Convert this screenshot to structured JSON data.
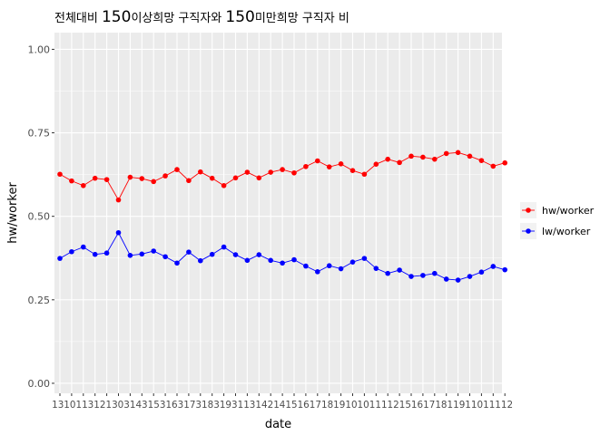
{
  "chart_data": {
    "type": "line",
    "title_parts": [
      {
        "text": "전체대비 ",
        "big": false
      },
      {
        "text": "150",
        "big": true
      },
      {
        "text": "이상희망 구직자와 ",
        "big": false
      },
      {
        "text": "150",
        "big": true
      },
      {
        "text": "미만희망 구직자 비",
        "big": false
      }
    ],
    "xlabel": "date",
    "ylabel": "hw/worker",
    "ylim": [
      -0.03,
      1.05
    ],
    "y_ticks": [
      {
        "value": 0.0,
        "label": "0.00"
      },
      {
        "value": 0.25,
        "label": "0.25"
      },
      {
        "value": 0.5,
        "label": "0.50"
      },
      {
        "value": 0.75,
        "label": "0.75"
      },
      {
        "value": 1.0,
        "label": "1.00"
      }
    ],
    "x": [
      "1310",
      "1311",
      "1312",
      "1401",
      "1402",
      "1403",
      "1404",
      "1405",
      "1406",
      "1407",
      "1408",
      "1409",
      "1410",
      "1411",
      "1412",
      "1501",
      "1502",
      "1503",
      "1504",
      "1505",
      "1506",
      "1507",
      "1508",
      "1509",
      "1510",
      "1511",
      "1512",
      "1601",
      "1602",
      "1603",
      "1604",
      "1605",
      "1606",
      "1607",
      "1608",
      "1609",
      "1610",
      "1611",
      "1612"
    ],
    "x_tick_text": "13101131213031431531631731831931131421415161718191010111121516171811911011112",
    "series": [
      {
        "name": "hw/worker",
        "color": "#FF0000",
        "values": [
          0.626,
          0.606,
          0.592,
          0.614,
          0.61,
          0.549,
          0.617,
          0.613,
          0.604,
          0.621,
          0.64,
          0.607,
          0.633,
          0.614,
          0.592,
          0.615,
          0.632,
          0.615,
          0.632,
          0.64,
          0.63,
          0.649,
          0.666,
          0.648,
          0.657,
          0.637,
          0.626,
          0.656,
          0.671,
          0.661,
          0.68,
          0.677,
          0.671,
          0.688,
          0.691,
          0.68,
          0.667,
          0.65,
          0.66
        ]
      },
      {
        "name": "lw/worker",
        "color": "#0000FF",
        "values": [
          0.374,
          0.394,
          0.408,
          0.386,
          0.39,
          0.451,
          0.383,
          0.387,
          0.396,
          0.379,
          0.36,
          0.393,
          0.367,
          0.386,
          0.408,
          0.385,
          0.368,
          0.385,
          0.368,
          0.36,
          0.37,
          0.351,
          0.334,
          0.352,
          0.343,
          0.363,
          0.374,
          0.344,
          0.329,
          0.339,
          0.32,
          0.323,
          0.329,
          0.312,
          0.309,
          0.32,
          0.333,
          0.35,
          0.34
        ]
      }
    ],
    "legend_position": "right",
    "grid": true,
    "panel_color": "#EBEBEB",
    "grid_color": "#FFFFFF"
  }
}
